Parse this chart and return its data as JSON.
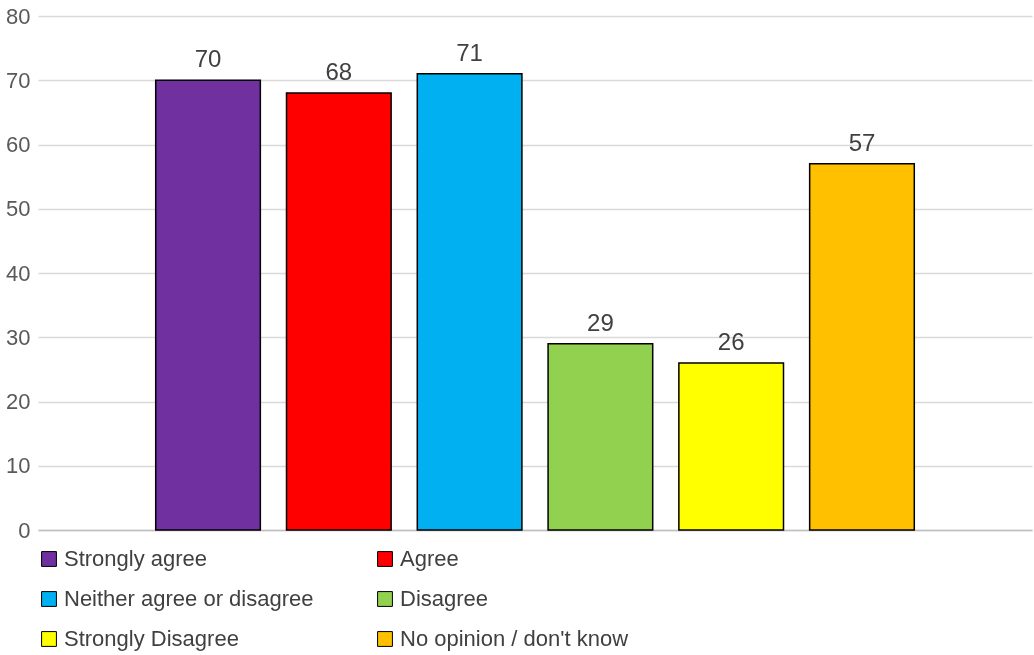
{
  "chart_data": {
    "type": "bar",
    "categories": [
      null
    ],
    "series": [
      {
        "name": "Strongly agree",
        "color": "#7030a0",
        "values": [
          70
        ]
      },
      {
        "name": "Agree",
        "color": "#ff0000",
        "values": [
          68
        ]
      },
      {
        "name": "Neither agree or disagree",
        "color": "#00b0f0",
        "values": [
          71
        ]
      },
      {
        "name": "Disagree",
        "color": "#92d050",
        "values": [
          29
        ]
      },
      {
        "name": "Strongly Disagree",
        "color": "#ffff00",
        "values": [
          26
        ]
      },
      {
        "name": "No opinion / don't know",
        "color": "#ffc000",
        "values": [
          57
        ]
      }
    ],
    "ylim": [
      0,
      80
    ],
    "yticks": [
      0,
      10,
      20,
      30,
      40,
      50,
      60,
      70,
      80
    ],
    "grid": "y",
    "legend": "bottom",
    "data_labels": true,
    "tick_labels": "y"
  }
}
